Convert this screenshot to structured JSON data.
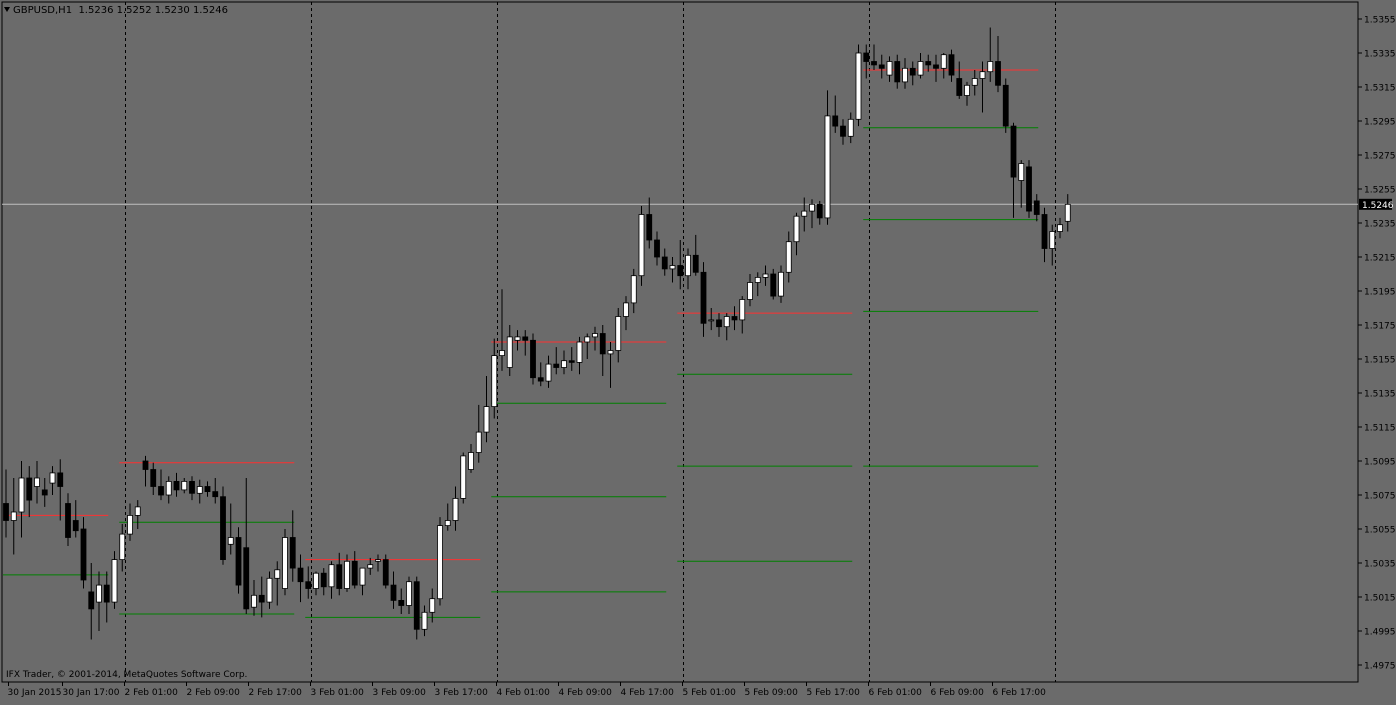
{
  "header": {
    "symbol": "GBPUSD,H1",
    "ohlc": "1.5236 1.5252 1.5230 1.5246"
  },
  "footer": {
    "copyright": "IFX Trader, © 2001-2014, MetaQuotes Software Corp."
  },
  "current_price_label": "1.5246",
  "colors": {
    "background": "#6b6b6b",
    "grid": "#000000",
    "bull": "#ffffff",
    "bear": "#000000",
    "price_line": "#c0c0c0",
    "resistance": "#ff3030",
    "support": "#008000"
  },
  "chart_data": {
    "type": "candlestick",
    "symbol": "GBPUSD",
    "timeframe": "H1",
    "current_price": 1.5246,
    "ylim": [
      1.4965,
      1.5365
    ],
    "y_ticks": [
      "1.5355",
      "1.5335",
      "1.5315",
      "1.5295",
      "1.5275",
      "1.5255",
      "1.5235",
      "1.5215",
      "1.5195",
      "1.5175",
      "1.5155",
      "1.5135",
      "1.5115",
      "1.5095",
      "1.5075",
      "1.5055",
      "1.5035",
      "1.5015",
      "1.4995",
      "1.4975"
    ],
    "x_ticks": [
      "30 Jan 2015",
      "30 Jan 17:00",
      "2 Feb 01:00",
      "2 Feb 09:00",
      "2 Feb 17:00",
      "3 Feb 01:00",
      "3 Feb 09:00",
      "3 Feb 17:00",
      "4 Feb 01:00",
      "4 Feb 09:00",
      "4 Feb 17:00",
      "5 Feb 01:00",
      "5 Feb 09:00",
      "5 Feb 17:00",
      "6 Feb 01:00",
      "6 Feb 09:00",
      "6 Feb 17:00"
    ],
    "day_separators": [
      "2 Feb",
      "3 Feb",
      "4 Feb",
      "5 Feb",
      "6 Feb",
      "7 Feb"
    ],
    "daily_levels": [
      {
        "day": "30 Jan",
        "resistance": 1.5063,
        "support": [
          1.5028
        ]
      },
      {
        "day": "2 Feb",
        "resistance": 1.5094,
        "support": [
          1.5059,
          1.5005
        ]
      },
      {
        "day": "3 Feb",
        "resistance": 1.5037,
        "support": [
          1.5003
        ]
      },
      {
        "day": "4 Feb",
        "resistance": 1.5165,
        "support": [
          1.5129,
          1.5074,
          1.5018
        ]
      },
      {
        "day": "5 Feb",
        "resistance": 1.5182,
        "support": [
          1.5146,
          1.5092,
          1.5036
        ]
      },
      {
        "day": "6 Feb",
        "resistance": 1.5325,
        "support": [
          1.5291,
          1.5237,
          1.5183,
          1.5092
        ]
      }
    ],
    "ohlc": [
      [
        1.507,
        1.509,
        1.505,
        1.506
      ],
      [
        1.506,
        1.5085,
        1.504,
        1.5065
      ],
      [
        1.5065,
        1.5095,
        1.505,
        1.5085
      ],
      [
        1.5085,
        1.5092,
        1.5062,
        1.5072
      ],
      [
        1.508,
        1.5095,
        1.507,
        1.5085
      ],
      [
        1.5078,
        1.5085,
        1.5068,
        1.5075
      ],
      [
        1.5082,
        1.5092,
        1.5075,
        1.5088
      ],
      [
        1.5088,
        1.5096,
        1.506,
        1.508
      ],
      [
        1.507,
        1.5076,
        1.5045,
        1.505
      ],
      [
        1.506,
        1.5072,
        1.505,
        1.5054
      ],
      [
        1.5055,
        1.5062,
        1.502,
        1.5025
      ],
      [
        1.5018,
        1.5035,
        1.499,
        1.5008
      ],
      [
        1.5012,
        1.503,
        1.4995,
        1.5022
      ],
      [
        1.5022,
        1.503,
        1.5,
        1.5012
      ],
      [
        1.5012,
        1.5042,
        1.5008,
        1.5037
      ],
      [
        1.5037,
        1.5058,
        1.503,
        1.5052
      ],
      [
        1.5052,
        1.507,
        1.5048,
        1.5063
      ],
      [
        1.5063,
        1.5072,
        1.5055,
        1.5068
      ],
      [
        1.5095,
        1.5098,
        1.508,
        1.509
      ],
      [
        1.509,
        1.5094,
        1.5075,
        1.508
      ],
      [
        1.508,
        1.509,
        1.5072,
        1.5075
      ],
      [
        1.5075,
        1.5086,
        1.507,
        1.5083
      ],
      [
        1.5083,
        1.5088,
        1.5074,
        1.5078
      ],
      [
        1.5078,
        1.5085,
        1.5076,
        1.5083
      ],
      [
        1.5083,
        1.5086,
        1.5072,
        1.5076
      ],
      [
        1.5076,
        1.5084,
        1.507,
        1.508
      ],
      [
        1.508,
        1.5083,
        1.5074,
        1.5077
      ],
      [
        1.5077,
        1.5085,
        1.507,
        1.5074
      ],
      [
        1.5074,
        1.508,
        1.5034,
        1.5037
      ],
      [
        1.5046,
        1.507,
        1.504,
        1.505
      ],
      [
        1.505,
        1.5056,
        1.5017,
        1.5022
      ],
      [
        1.5044,
        1.5085,
        1.5005,
        1.5008
      ],
      [
        1.5009,
        1.5025,
        1.5004,
        1.5016
      ],
      [
        1.5016,
        1.5027,
        1.5003,
        1.5012
      ],
      [
        1.5012,
        1.503,
        1.5008,
        1.5026
      ],
      [
        1.5026,
        1.5036,
        1.501,
        1.5031
      ],
      [
        1.502,
        1.5055,
        1.5016,
        1.505
      ],
      [
        1.505,
        1.5066,
        1.5024,
        1.5032
      ],
      [
        1.5032,
        1.504,
        1.5012,
        1.5024
      ],
      [
        1.5024,
        1.5033,
        1.5014,
        1.502
      ],
      [
        1.502,
        1.503,
        1.5016,
        1.5029
      ],
      [
        1.5029,
        1.5032,
        1.5016,
        1.5021
      ],
      [
        1.5021,
        1.5036,
        1.5014,
        1.5034
      ],
      [
        1.5034,
        1.5041,
        1.5016,
        1.502
      ],
      [
        1.502,
        1.504,
        1.5018,
        1.5036
      ],
      [
        1.5036,
        1.5042,
        1.502,
        1.5022
      ],
      [
        1.5022,
        1.5032,
        1.5016,
        1.5032
      ],
      [
        1.5032,
        1.5038,
        1.5028,
        1.5034
      ],
      [
        1.5036,
        1.504,
        1.503,
        1.5037
      ],
      [
        1.5037,
        1.504,
        1.502,
        1.5022
      ],
      [
        1.5022,
        1.503,
        1.5008,
        1.5013
      ],
      [
        1.5013,
        1.502,
        1.5005,
        1.501
      ],
      [
        1.501,
        1.5027,
        1.5005,
        1.5024
      ],
      [
        1.5024,
        1.5027,
        1.499,
        1.4996
      ],
      [
        1.4996,
        1.501,
        1.4992,
        1.5006
      ],
      [
        1.5006,
        1.502,
        1.5,
        1.5014
      ],
      [
        1.5014,
        1.5062,
        1.501,
        1.5057
      ],
      [
        1.5057,
        1.507,
        1.5054,
        1.506
      ],
      [
        1.506,
        1.508,
        1.5054,
        1.5073
      ],
      [
        1.5073,
        1.51,
        1.507,
        1.5098
      ],
      [
        1.509,
        1.5105,
        1.5088,
        1.51
      ],
      [
        1.51,
        1.5128,
        1.5094,
        1.5112
      ],
      [
        1.5112,
        1.5145,
        1.5106,
        1.5127
      ],
      [
        1.5127,
        1.5167,
        1.512,
        1.5157
      ],
      [
        1.5157,
        1.5196,
        1.5148,
        1.516
      ],
      [
        1.515,
        1.5175,
        1.5145,
        1.5168
      ],
      [
        1.5166,
        1.5172,
        1.516,
        1.5168
      ],
      [
        1.5168,
        1.5172,
        1.5157,
        1.5166
      ],
      [
        1.5166,
        1.517,
        1.514,
        1.5144
      ],
      [
        1.5144,
        1.5153,
        1.5139,
        1.5142
      ],
      [
        1.5142,
        1.5157,
        1.5138,
        1.5152
      ],
      [
        1.5152,
        1.5162,
        1.5146,
        1.515
      ],
      [
        1.515,
        1.516,
        1.5146,
        1.5154
      ],
      [
        1.5154,
        1.5162,
        1.5148,
        1.5153
      ],
      [
        1.5153,
        1.5168,
        1.5146,
        1.5165
      ],
      [
        1.5165,
        1.517,
        1.5155,
        1.5168
      ],
      [
        1.5168,
        1.5174,
        1.516,
        1.517
      ],
      [
        1.517,
        1.5175,
        1.5145,
        1.5158
      ],
      [
        1.5158,
        1.5165,
        1.5138,
        1.516
      ],
      [
        1.516,
        1.5185,
        1.5153,
        1.518
      ],
      [
        1.518,
        1.5192,
        1.5172,
        1.5188
      ],
      [
        1.5188,
        1.5208,
        1.5182,
        1.5204
      ],
      [
        1.5204,
        1.5245,
        1.5198,
        1.524
      ],
      [
        1.524,
        1.525,
        1.522,
        1.5225
      ],
      [
        1.5225,
        1.523,
        1.521,
        1.5215
      ],
      [
        1.5215,
        1.522,
        1.5204,
        1.5208
      ],
      [
        1.5208,
        1.5215,
        1.52,
        1.521
      ],
      [
        1.521,
        1.5225,
        1.5196,
        1.5204
      ],
      [
        1.5204,
        1.522,
        1.5196,
        1.5216
      ],
      [
        1.5216,
        1.5228,
        1.5204,
        1.5206
      ],
      [
        1.5206,
        1.5212,
        1.5168,
        1.5176
      ],
      [
        1.5178,
        1.5185,
        1.5172,
        1.5178
      ],
      [
        1.5178,
        1.5182,
        1.5168,
        1.5174
      ],
      [
        1.5174,
        1.5182,
        1.5166,
        1.518
      ],
      [
        1.518,
        1.5186,
        1.5172,
        1.5178
      ],
      [
        1.5178,
        1.5192,
        1.517,
        1.519
      ],
      [
        1.519,
        1.5205,
        1.5186,
        1.52
      ],
      [
        1.52,
        1.5206,
        1.5192,
        1.5203
      ],
      [
        1.5203,
        1.521,
        1.5198,
        1.5205
      ],
      [
        1.5205,
        1.5208,
        1.519,
        1.5192
      ],
      [
        1.5192,
        1.521,
        1.5188,
        1.5206
      ],
      [
        1.5206,
        1.523,
        1.52,
        1.5224
      ],
      [
        1.5224,
        1.5241,
        1.5216,
        1.5239
      ],
      [
        1.5239,
        1.525,
        1.523,
        1.5242
      ],
      [
        1.5242,
        1.5249,
        1.5232,
        1.5246
      ],
      [
        1.5246,
        1.5248,
        1.5234,
        1.5238
      ],
      [
        1.5238,
        1.5313,
        1.5234,
        1.5298
      ],
      [
        1.5298,
        1.531,
        1.5288,
        1.5292
      ],
      [
        1.5292,
        1.5296,
        1.5281,
        1.5286
      ],
      [
        1.5286,
        1.53,
        1.5282,
        1.5296
      ],
      [
        1.5296,
        1.534,
        1.5292,
        1.5335
      ],
      [
        1.5335,
        1.534,
        1.532,
        1.533
      ],
      [
        1.533,
        1.534,
        1.5325,
        1.5328
      ],
      [
        1.5328,
        1.5334,
        1.532,
        1.5326
      ],
      [
        1.5322,
        1.5333,
        1.5318,
        1.533
      ],
      [
        1.533,
        1.5334,
        1.5314,
        1.5318
      ],
      [
        1.5318,
        1.5332,
        1.5314,
        1.5326
      ],
      [
        1.5326,
        1.533,
        1.5316,
        1.5322
      ],
      [
        1.5322,
        1.5335,
        1.532,
        1.533
      ],
      [
        1.533,
        1.5334,
        1.5324,
        1.5328
      ],
      [
        1.5328,
        1.5334,
        1.5318,
        1.5326
      ],
      [
        1.5326,
        1.5335,
        1.532,
        1.5334
      ],
      [
        1.5334,
        1.5337,
        1.5318,
        1.5322
      ],
      [
        1.532,
        1.533,
        1.5308,
        1.531
      ],
      [
        1.531,
        1.5318,
        1.5304,
        1.5316
      ],
      [
        1.5316,
        1.5325,
        1.531,
        1.532
      ],
      [
        1.532,
        1.533,
        1.53,
        1.5324
      ],
      [
        1.5324,
        1.535,
        1.5318,
        1.533
      ],
      [
        1.533,
        1.5345,
        1.5312,
        1.5316
      ],
      [
        1.5316,
        1.532,
        1.5288,
        1.5292
      ],
      [
        1.5292,
        1.5294,
        1.5238,
        1.5262
      ],
      [
        1.526,
        1.5272,
        1.5244,
        1.527
      ],
      [
        1.5268,
        1.5272,
        1.5238,
        1.5242
      ],
      [
        1.5248,
        1.5252,
        1.5236,
        1.524
      ],
      [
        1.524,
        1.5244,
        1.5212,
        1.522
      ],
      [
        1.522,
        1.5234,
        1.521,
        1.523
      ],
      [
        1.523,
        1.5238,
        1.5226,
        1.5234
      ],
      [
        1.5236,
        1.5252,
        1.523,
        1.5246
      ]
    ]
  }
}
